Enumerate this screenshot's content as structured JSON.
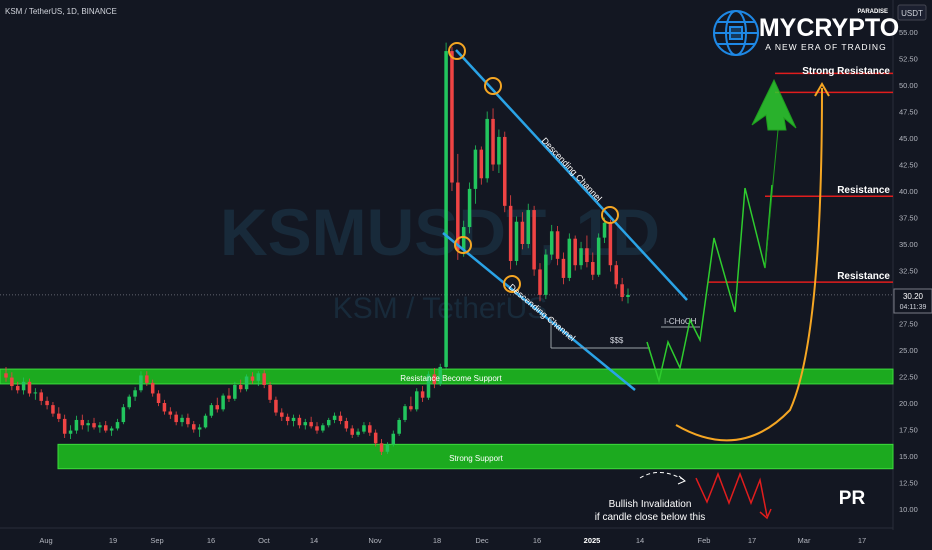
{
  "header": {
    "symbol_line": "KSM / TetherUS, 1D, BINANCE"
  },
  "watermark": {
    "ticker": "KSMUSDT, 1D",
    "pair": "KSM / TetherUS"
  },
  "logo": {
    "brand": "MYCRYPTO",
    "tag_top": "PARADISE",
    "tagline": "A NEW ERA OF TRADING"
  },
  "currency_label": "USDT",
  "price_badge": {
    "price": "30.20",
    "countdown": "04:11:39"
  },
  "annotations": {
    "descending_channel_upper": "Descending Channel",
    "descending_channel_lower": "Descending Channel",
    "resistance_support": "Resistance Become Support",
    "strong_support": "Strong Support",
    "strong_resistance": "Strong Resistance",
    "resistance_1": "Resistance",
    "resistance_2": "Resistance",
    "choch": "I-CHoCH",
    "liquidity": "$$$",
    "invalidation_line1": "Bullish Invalidation",
    "invalidation_line2": "if candle close below this",
    "signature": "PR"
  },
  "colors": {
    "background": "#131722",
    "bull": "#26a69a",
    "bull_candle": "#22c55e",
    "bear_candle": "#ef4444",
    "zone_green": "#1ec41e",
    "channel_blue": "#2aa3e6",
    "resistance_red": "#e11d1d",
    "arrow_orange": "#f5a623",
    "projection_green": "#2ecc2e"
  },
  "chart_data": {
    "type": "candlestick",
    "y_axis_ticks": [
      "55.00",
      "52.50",
      "50.00",
      "47.50",
      "45.00",
      "42.50",
      "40.00",
      "37.50",
      "35.00",
      "32.50",
      "30.00",
      "27.50",
      "25.00",
      "22.50",
      "20.00",
      "17.50",
      "15.00",
      "12.50",
      "10.00"
    ],
    "x_axis_ticks": [
      "Aug",
      "19",
      "Sep",
      "16",
      "Oct",
      "14",
      "Nov",
      "18",
      "Dec",
      "16",
      "2025",
      "14",
      "Feb",
      "17",
      "Mar",
      "17"
    ],
    "ylim": [
      8.5,
      56.5
    ],
    "levels": {
      "strong_resistance": 51.0,
      "resistance_upper": 39.5,
      "resistance_lower": 31.4,
      "last_price": 30.2,
      "liquidity_line": 25.0,
      "choch": 27.0
    },
    "zones": [
      {
        "name": "Resistance Become Support",
        "from": 21.8,
        "to": 23.2
      },
      {
        "name": "Strong Support",
        "from": 13.8,
        "to": 16.1
      }
    ],
    "candles_ohlc": [
      [
        22.8,
        23.4,
        22.0,
        22.4
      ],
      [
        22.4,
        22.9,
        21.2,
        21.6
      ],
      [
        21.6,
        22.0,
        20.9,
        21.2
      ],
      [
        21.2,
        22.4,
        20.8,
        22.0
      ],
      [
        22.0,
        22.3,
        20.6,
        20.9
      ],
      [
        20.9,
        21.4,
        20.3,
        21.0
      ],
      [
        21.0,
        21.3,
        19.8,
        20.2
      ],
      [
        20.2,
        20.6,
        19.4,
        19.8
      ],
      [
        19.8,
        20.1,
        18.7,
        19.0
      ],
      [
        19.0,
        19.6,
        18.2,
        18.5
      ],
      [
        18.5,
        18.9,
        16.7,
        17.1
      ],
      [
        17.1,
        17.9,
        16.6,
        17.4
      ],
      [
        17.4,
        18.8,
        17.1,
        18.4
      ],
      [
        18.4,
        18.9,
        17.5,
        17.9
      ],
      [
        17.9,
        18.4,
        17.3,
        18.1
      ],
      [
        18.1,
        18.6,
        17.5,
        17.7
      ],
      [
        17.7,
        18.2,
        17.2,
        17.9
      ],
      [
        17.9,
        18.3,
        17.2,
        17.4
      ],
      [
        17.4,
        17.8,
        16.9,
        17.6
      ],
      [
        17.6,
        18.5,
        17.4,
        18.2
      ],
      [
        18.2,
        19.9,
        18.0,
        19.6
      ],
      [
        19.6,
        20.8,
        19.4,
        20.6
      ],
      [
        20.6,
        21.5,
        20.2,
        21.2
      ],
      [
        21.2,
        23.0,
        21.0,
        22.6
      ],
      [
        22.6,
        23.0,
        21.6,
        21.9
      ],
      [
        21.9,
        22.2,
        20.6,
        20.9
      ],
      [
        20.9,
        21.2,
        19.7,
        20.0
      ],
      [
        20.0,
        20.3,
        18.9,
        19.2
      ],
      [
        19.2,
        19.6,
        18.5,
        18.9
      ],
      [
        18.9,
        19.2,
        17.9,
        18.2
      ],
      [
        18.2,
        18.9,
        17.8,
        18.6
      ],
      [
        18.6,
        19.0,
        17.7,
        18.0
      ],
      [
        18.0,
        18.3,
        17.2,
        17.5
      ],
      [
        17.5,
        18.0,
        16.8,
        17.7
      ],
      [
        17.7,
        19.0,
        17.6,
        18.8
      ],
      [
        18.8,
        20.0,
        18.6,
        19.8
      ],
      [
        19.8,
        20.5,
        19.1,
        19.4
      ],
      [
        19.4,
        20.9,
        19.2,
        20.7
      ],
      [
        20.7,
        21.4,
        20.1,
        20.4
      ],
      [
        20.4,
        22.0,
        20.2,
        21.7
      ],
      [
        21.7,
        22.2,
        21.0,
        21.3
      ],
      [
        21.3,
        22.7,
        21.1,
        22.5
      ],
      [
        22.5,
        22.9,
        21.8,
        22.1
      ],
      [
        22.1,
        23.0,
        21.6,
        22.8
      ],
      [
        22.8,
        23.1,
        21.4,
        21.7
      ],
      [
        21.7,
        22.0,
        20.0,
        20.3
      ],
      [
        20.3,
        20.6,
        18.8,
        19.1
      ],
      [
        19.1,
        19.5,
        18.3,
        18.7
      ],
      [
        18.7,
        19.0,
        17.9,
        18.3
      ],
      [
        18.3,
        18.9,
        17.8,
        18.6
      ],
      [
        18.6,
        18.9,
        17.6,
        17.9
      ],
      [
        17.9,
        18.5,
        17.5,
        18.2
      ],
      [
        18.2,
        18.7,
        17.6,
        17.8
      ],
      [
        17.8,
        18.2,
        17.1,
        17.4
      ],
      [
        17.4,
        18.1,
        17.2,
        17.9
      ],
      [
        17.9,
        18.6,
        17.7,
        18.4
      ],
      [
        18.4,
        19.1,
        18.1,
        18.8
      ],
      [
        18.8,
        19.2,
        18.0,
        18.3
      ],
      [
        18.3,
        18.6,
        17.3,
        17.6
      ],
      [
        17.6,
        17.9,
        16.7,
        17.0
      ],
      [
        17.0,
        17.6,
        16.8,
        17.3
      ],
      [
        17.3,
        18.2,
        17.1,
        17.9
      ],
      [
        17.9,
        18.2,
        16.9,
        17.2
      ],
      [
        17.2,
        17.5,
        15.9,
        16.2
      ],
      [
        16.2,
        16.6,
        15.1,
        15.4
      ],
      [
        15.4,
        16.3,
        15.2,
        16.1
      ],
      [
        16.1,
        17.4,
        15.9,
        17.1
      ],
      [
        17.1,
        18.6,
        16.9,
        18.4
      ],
      [
        18.4,
        19.9,
        18.2,
        19.7
      ],
      [
        19.7,
        20.6,
        19.2,
        19.4
      ],
      [
        19.4,
        21.4,
        19.2,
        21.1
      ],
      [
        21.1,
        21.6,
        20.1,
        20.5
      ],
      [
        20.5,
        23.0,
        20.3,
        22.7
      ],
      [
        22.7,
        23.3,
        21.4,
        21.8
      ],
      [
        21.8,
        23.7,
        21.6,
        23.4
      ],
      [
        23.4,
        54.0,
        23.1,
        53.2
      ],
      [
        53.2,
        53.6,
        40.0,
        40.8
      ],
      [
        40.8,
        43.5,
        33.5,
        34.4
      ],
      [
        34.4,
        37.2,
        33.8,
        36.6
      ],
      [
        36.6,
        40.8,
        36.0,
        40.2
      ],
      [
        40.2,
        44.3,
        38.8,
        43.9
      ],
      [
        43.9,
        44.2,
        40.6,
        41.2
      ],
      [
        41.2,
        47.5,
        40.8,
        46.8
      ],
      [
        46.8,
        47.8,
        41.9,
        42.5
      ],
      [
        42.5,
        45.8,
        41.7,
        45.1
      ],
      [
        45.1,
        45.6,
        38.0,
        38.6
      ],
      [
        38.6,
        39.6,
        32.6,
        33.4
      ],
      [
        33.4,
        37.6,
        33.0,
        37.1
      ],
      [
        37.1,
        38.0,
        34.5,
        35.0
      ],
      [
        35.0,
        38.8,
        34.6,
        38.2
      ],
      [
        38.2,
        38.6,
        32.0,
        32.6
      ],
      [
        32.6,
        33.2,
        29.6,
        30.2
      ],
      [
        30.2,
        34.5,
        29.8,
        34.0
      ],
      [
        34.0,
        36.8,
        33.5,
        36.2
      ],
      [
        36.2,
        36.7,
        33.0,
        33.6
      ],
      [
        33.6,
        34.2,
        31.2,
        31.8
      ],
      [
        31.8,
        36.0,
        31.5,
        35.5
      ],
      [
        35.5,
        35.8,
        32.5,
        33.0
      ],
      [
        33.0,
        35.2,
        32.6,
        34.6
      ],
      [
        34.6,
        35.8,
        32.8,
        33.3
      ],
      [
        33.3,
        34.2,
        31.6,
        32.1
      ],
      [
        32.1,
        36.0,
        31.9,
        35.6
      ],
      [
        35.6,
        37.5,
        35.1,
        37.0
      ],
      [
        37.0,
        37.3,
        32.4,
        33.0
      ],
      [
        33.0,
        33.4,
        30.8,
        31.2
      ],
      [
        31.2,
        31.8,
        29.6,
        30.0
      ],
      [
        30.0,
        30.8,
        29.4,
        30.2
      ]
    ]
  }
}
